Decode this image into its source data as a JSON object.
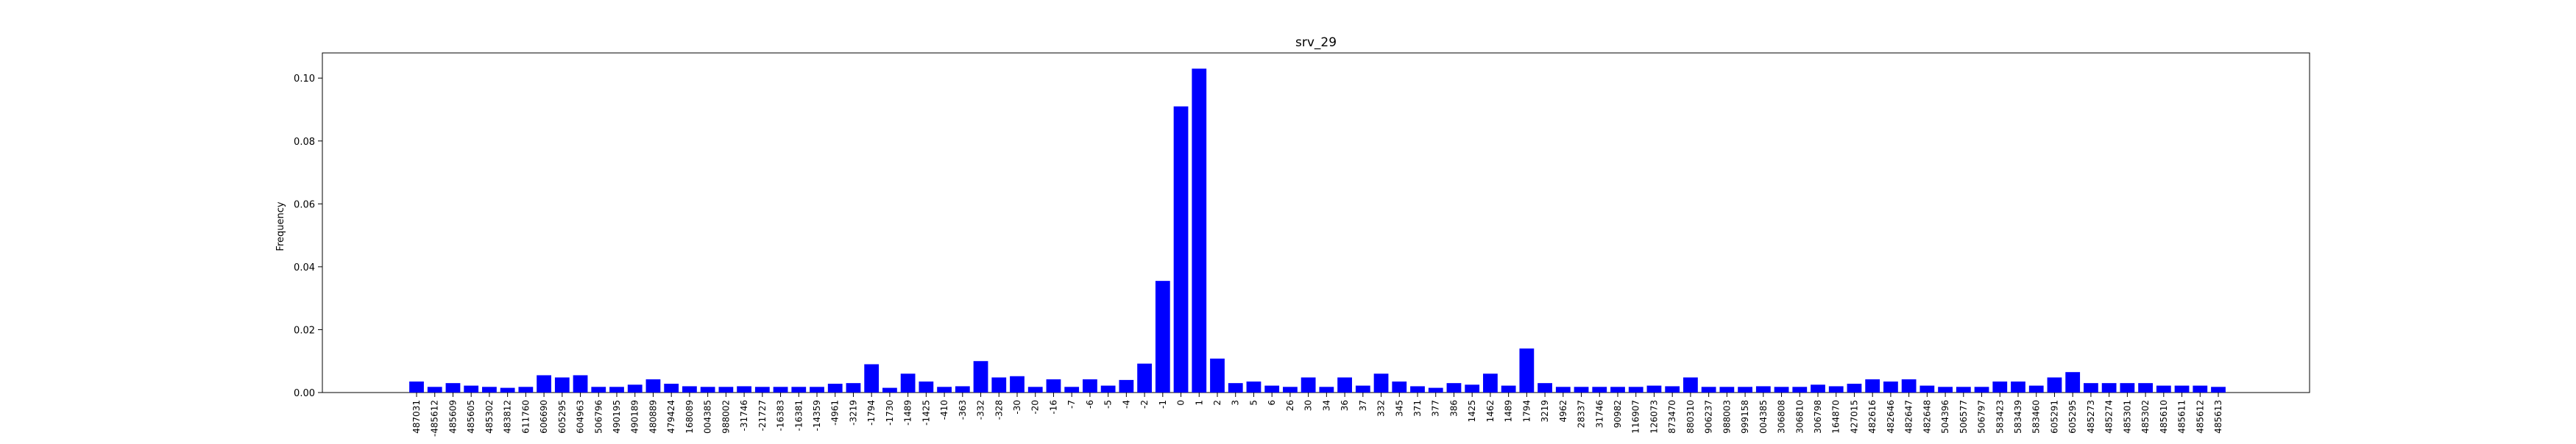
{
  "chart_data": {
    "type": "bar",
    "title": "srv_29",
    "xlabel": "",
    "ylabel": "Frequency",
    "ylim": [
      0,
      0.108
    ],
    "yticks": [
      0.0,
      0.02,
      0.04,
      0.06,
      0.08,
      0.1
    ],
    "ytick_labels": [
      "0.00",
      "0.02",
      "0.04",
      "0.06",
      "0.08",
      "0.10"
    ],
    "bar_color": "#0000ff",
    "grid": false,
    "categories": [
      "487031",
      "-485612",
      "485609",
      "485605",
      "485302",
      "483812",
      "611760",
      "606690",
      "605295",
      "604963",
      "506796",
      "490195",
      "490189",
      "480889",
      "479424",
      "168089",
      "004385",
      "988002",
      "-31746",
      "-21727",
      "-16383",
      "-16381",
      "-14359",
      "-4961",
      "-3219",
      "-1794",
      "-1730",
      "-1489",
      "-1425",
      "-410",
      "-363",
      "-332",
      "-328",
      "-30",
      "-20",
      "-16",
      "-7",
      "-6",
      "-5",
      "-4",
      "-2",
      "-1",
      "0",
      "1",
      "2",
      "3",
      "5",
      "6",
      "26",
      "30",
      "34",
      "36",
      "37",
      "332",
      "345",
      "371",
      "377",
      "386",
      "1425",
      "1462",
      "1489",
      "1794",
      "3219",
      "4962",
      "28337",
      "31746",
      "90982",
      "116907",
      "126073",
      "873470",
      "880310",
      "906237",
      "988003",
      "999158",
      "004385",
      "306808",
      "306810",
      "306798",
      "164870",
      "427015",
      "482616",
      "482646",
      "482647",
      "482648",
      "504396",
      "506577",
      "506797",
      "583423",
      "583439",
      "583460",
      "605291",
      "605295",
      "485273",
      "485274",
      "485301",
      "485302",
      "485610",
      "485611",
      "485612",
      "485613"
    ],
    "values": [
      0.0035,
      0.0018,
      0.003,
      0.0022,
      0.0018,
      0.0015,
      0.0018,
      0.0055,
      0.0048,
      0.0055,
      0.0018,
      0.0018,
      0.0025,
      0.0042,
      0.0028,
      0.002,
      0.0018,
      0.0018,
      0.002,
      0.0018,
      0.0018,
      0.0018,
      0.0018,
      0.0028,
      0.003,
      0.009,
      0.0015,
      0.006,
      0.0035,
      0.0018,
      0.002,
      0.01,
      0.0048,
      0.0052,
      0.0018,
      0.0042,
      0.0018,
      0.0042,
      0.0022,
      0.004,
      0.0092,
      0.0355,
      0.091,
      0.103,
      0.0108,
      0.003,
      0.0035,
      0.0022,
      0.0018,
      0.0048,
      0.0018,
      0.0048,
      0.0022,
      0.006,
      0.0035,
      0.002,
      0.0015,
      0.003,
      0.0025,
      0.006,
      0.0022,
      0.014,
      0.003,
      0.0018,
      0.0018,
      0.0018,
      0.0018,
      0.0018,
      0.0022,
      0.002,
      0.0048,
      0.0018,
      0.0018,
      0.0018,
      0.002,
      0.0018,
      0.0018,
      0.0025,
      0.002,
      0.0028,
      0.0042,
      0.0035,
      0.0042,
      0.0022,
      0.0018,
      0.0018,
      0.0018,
      0.0035,
      0.0035,
      0.0022,
      0.0048,
      0.0065,
      0.003,
      0.003,
      0.003,
      0.003,
      0.0022,
      0.0022,
      0.0022,
      0.0018
    ]
  }
}
